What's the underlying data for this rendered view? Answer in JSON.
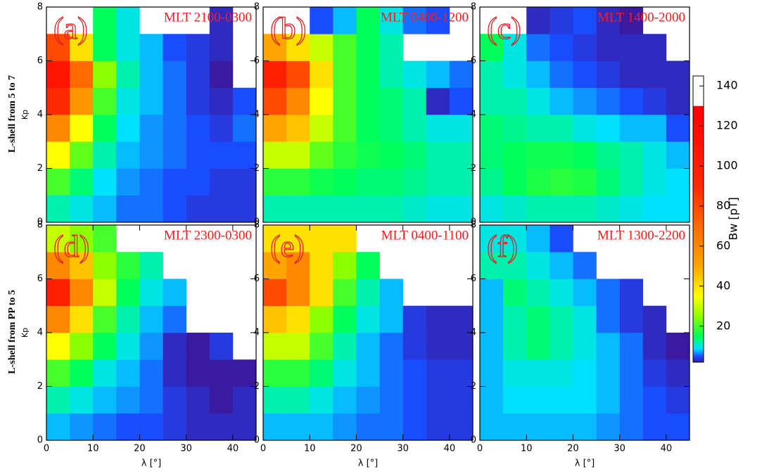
{
  "chart_data": [
    {
      "type": "heatmap",
      "panel": "(a)",
      "title": "MLT 2100-0300",
      "ylabel": "Kp",
      "xlim": [
        0,
        45
      ],
      "ylim": [
        0,
        8
      ],
      "yticks": [
        0,
        2,
        4,
        6,
        8
      ],
      "xbins": [
        0,
        5,
        10,
        15,
        20,
        25,
        30,
        35,
        40,
        45
      ],
      "ybins": [
        0,
        1,
        2,
        3,
        4,
        5,
        6,
        7,
        8
      ],
      "z": [
        [
          12,
          10,
          8,
          6,
          6,
          5,
          4,
          4,
          4
        ],
        [
          20,
          14,
          9,
          7,
          6,
          5,
          5,
          4,
          4
        ],
        [
          35,
          22,
          12,
          8,
          7,
          6,
          5,
          5,
          5
        ],
        [
          60,
          35,
          15,
          9,
          7,
          6,
          5,
          4,
          6
        ],
        [
          90,
          55,
          20,
          10,
          8,
          6,
          4,
          3,
          5
        ],
        [
          110,
          70,
          25,
          12,
          8,
          6,
          4,
          2,
          null
        ],
        [
          80,
          40,
          15,
          10,
          8,
          5,
          4,
          3,
          null
        ],
        [
          null,
          null,
          15,
          10,
          null,
          null,
          null,
          3,
          null
        ]
      ]
    },
    {
      "type": "heatmap",
      "panel": "(b)",
      "title": "MLT 0400-1200",
      "xlim": [
        0,
        45
      ],
      "ylim": [
        0,
        8
      ],
      "yticks": [
        0,
        2,
        4,
        6,
        8
      ],
      "xbins": [
        0,
        5,
        10,
        15,
        20,
        25,
        30,
        35,
        40,
        45
      ],
      "ybins": [
        0,
        1,
        2,
        3,
        4,
        5,
        6,
        7,
        8
      ],
      "z": [
        [
          12,
          12,
          12,
          12,
          12,
          12,
          11,
          10,
          10
        ],
        [
          18,
          18,
          16,
          15,
          14,
          14,
          13,
          12,
          12
        ],
        [
          30,
          30,
          22,
          18,
          16,
          15,
          14,
          12,
          12
        ],
        [
          50,
          45,
          30,
          20,
          15,
          14,
          12,
          10,
          10
        ],
        [
          80,
          60,
          35,
          20,
          15,
          14,
          12,
          3,
          5
        ],
        [
          100,
          80,
          40,
          20,
          15,
          12,
          10,
          8,
          6
        ],
        [
          50,
          40,
          30,
          20,
          15,
          12,
          null,
          null,
          null
        ],
        [
          null,
          null,
          5,
          8,
          15,
          10,
          6,
          5,
          null
        ]
      ]
    },
    {
      "type": "heatmap",
      "panel": "(c)",
      "title": "MLT 1400-2000",
      "xlim": [
        0,
        45
      ],
      "ylim": [
        0,
        8
      ],
      "yticks": [
        0,
        2,
        4,
        6,
        8
      ],
      "xbins": [
        0,
        5,
        10,
        15,
        20,
        25,
        30,
        35,
        40,
        45
      ],
      "ybins": [
        0,
        1,
        2,
        3,
        4,
        5,
        6,
        7,
        8
      ],
      "z": [
        [
          10,
          11,
          12,
          12,
          12,
          11,
          10,
          9,
          9
        ],
        [
          13,
          15,
          17,
          18,
          17,
          14,
          12,
          10,
          9
        ],
        [
          14,
          15,
          16,
          16,
          15,
          13,
          12,
          10,
          8
        ],
        [
          14,
          13,
          12,
          12,
          10,
          9,
          8,
          8,
          5
        ],
        [
          12,
          12,
          10,
          8,
          7,
          6,
          5,
          4,
          3
        ],
        [
          12,
          10,
          8,
          6,
          5,
          4,
          3,
          3,
          3
        ],
        [
          15,
          10,
          6,
          5,
          4,
          3,
          3,
          3,
          null
        ],
        [
          null,
          null,
          3,
          4,
          5,
          3,
          2,
          null,
          null
        ]
      ]
    },
    {
      "type": "heatmap",
      "panel": "(d)",
      "title": "MLT 2300-0300",
      "ylabel": "Kp",
      "xlabel": "λ [°]",
      "xlim": [
        0,
        45
      ],
      "ylim": [
        0,
        8
      ],
      "xticks": [
        0,
        10,
        20,
        30,
        40
      ],
      "yticks": [
        0,
        2,
        4,
        6,
        8
      ],
      "xbins": [
        0,
        5,
        10,
        15,
        20,
        25,
        30,
        35,
        40,
        45
      ],
      "ybins": [
        0,
        1,
        2,
        3,
        4,
        5,
        6,
        7,
        8
      ],
      "z": [
        [
          8,
          7,
          6,
          5,
          5,
          4,
          3,
          3,
          3
        ],
        [
          12,
          10,
          8,
          7,
          6,
          4,
          3,
          2,
          3
        ],
        [
          20,
          15,
          10,
          8,
          6,
          3,
          2,
          2,
          2
        ],
        [
          35,
          25,
          15,
          10,
          7,
          3,
          2,
          4,
          null
        ],
        [
          60,
          40,
          20,
          12,
          8,
          6,
          null,
          null,
          null
        ],
        [
          100,
          60,
          30,
          15,
          10,
          8,
          null,
          null,
          null
        ],
        [
          60,
          45,
          25,
          18,
          12,
          null,
          null,
          null,
          null
        ],
        [
          30,
          25,
          20,
          null,
          null,
          null,
          null,
          null,
          null
        ]
      ]
    },
    {
      "type": "heatmap",
      "panel": "(e)",
      "title": "MLT 0400-1100",
      "xlabel": "λ [°]",
      "xlim": [
        0,
        45
      ],
      "ylim": [
        0,
        8
      ],
      "xticks": [
        0,
        10,
        20,
        30,
        40
      ],
      "yticks": [
        0,
        2,
        4,
        6,
        8
      ],
      "xbins": [
        0,
        5,
        10,
        15,
        20,
        25,
        30,
        35,
        40,
        45
      ],
      "ybins": [
        0,
        1,
        2,
        3,
        4,
        5,
        6,
        7,
        8
      ],
      "z": [
        [
          8,
          8,
          8,
          7,
          6,
          6,
          5,
          4,
          4
        ],
        [
          12,
          12,
          10,
          8,
          7,
          6,
          5,
          4,
          4
        ],
        [
          18,
          18,
          14,
          10,
          8,
          6,
          5,
          4,
          4
        ],
        [
          30,
          30,
          20,
          12,
          8,
          6,
          4,
          3,
          3
        ],
        [
          45,
          40,
          25,
          15,
          10,
          8,
          4,
          3,
          3
        ],
        [
          80,
          60,
          40,
          20,
          12,
          8,
          null,
          null,
          null
        ],
        [
          50,
          60,
          40,
          25,
          15,
          null,
          null,
          null,
          null
        ],
        [
          40,
          40,
          40,
          40,
          null,
          null,
          null,
          null,
          null
        ]
      ]
    },
    {
      "type": "heatmap",
      "panel": "(f)",
      "title": "MLT 1300-2200",
      "xlabel": "λ [°]",
      "xlim": [
        0,
        45
      ],
      "ylim": [
        0,
        8
      ],
      "xticks": [
        0,
        10,
        20,
        30,
        40
      ],
      "yticks": [
        0,
        2,
        4,
        6,
        8
      ],
      "xbins": [
        0,
        5,
        10,
        15,
        20,
        25,
        30,
        35,
        40,
        45
      ],
      "ybins": [
        0,
        1,
        2,
        3,
        4,
        5,
        6,
        7,
        8
      ],
      "z": [
        [
          8,
          8,
          8,
          8,
          8,
          7,
          6,
          5,
          5
        ],
        [
          8,
          9,
          9,
          9,
          9,
          8,
          6,
          5,
          4
        ],
        [
          8,
          10,
          10,
          10,
          9,
          8,
          6,
          4,
          3
        ],
        [
          8,
          12,
          14,
          12,
          10,
          8,
          6,
          3,
          2
        ],
        [
          8,
          12,
          14,
          12,
          10,
          6,
          4,
          3,
          null
        ],
        [
          8,
          14,
          12,
          10,
          8,
          6,
          4,
          null,
          null
        ],
        [
          12,
          12,
          10,
          8,
          6,
          null,
          null,
          null,
          null
        ],
        [
          10,
          10,
          8,
          5,
          null,
          null,
          null,
          null,
          null
        ]
      ]
    }
  ],
  "row_labels": [
    "L-shell from 5 to 7",
    "L-shell from PP to 5"
  ],
  "colorbar": {
    "label": "Bw [pT]",
    "zlim": [
      2,
      145
    ],
    "ticks": [
      20,
      40,
      60,
      80,
      100,
      120,
      140
    ],
    "colorscale": [
      [
        2,
        "#3a1aa0"
      ],
      [
        5,
        "#1a4cff"
      ],
      [
        9,
        "#00e0ff"
      ],
      [
        15,
        "#00ff5a"
      ],
      [
        25,
        "#8cff00"
      ],
      [
        35,
        "#ffff00"
      ],
      [
        50,
        "#ffa500"
      ],
      [
        70,
        "#ff6a00"
      ],
      [
        90,
        "#ff2a00"
      ],
      [
        130,
        "#ff0000"
      ]
    ],
    "over_color": "#ffffff"
  }
}
